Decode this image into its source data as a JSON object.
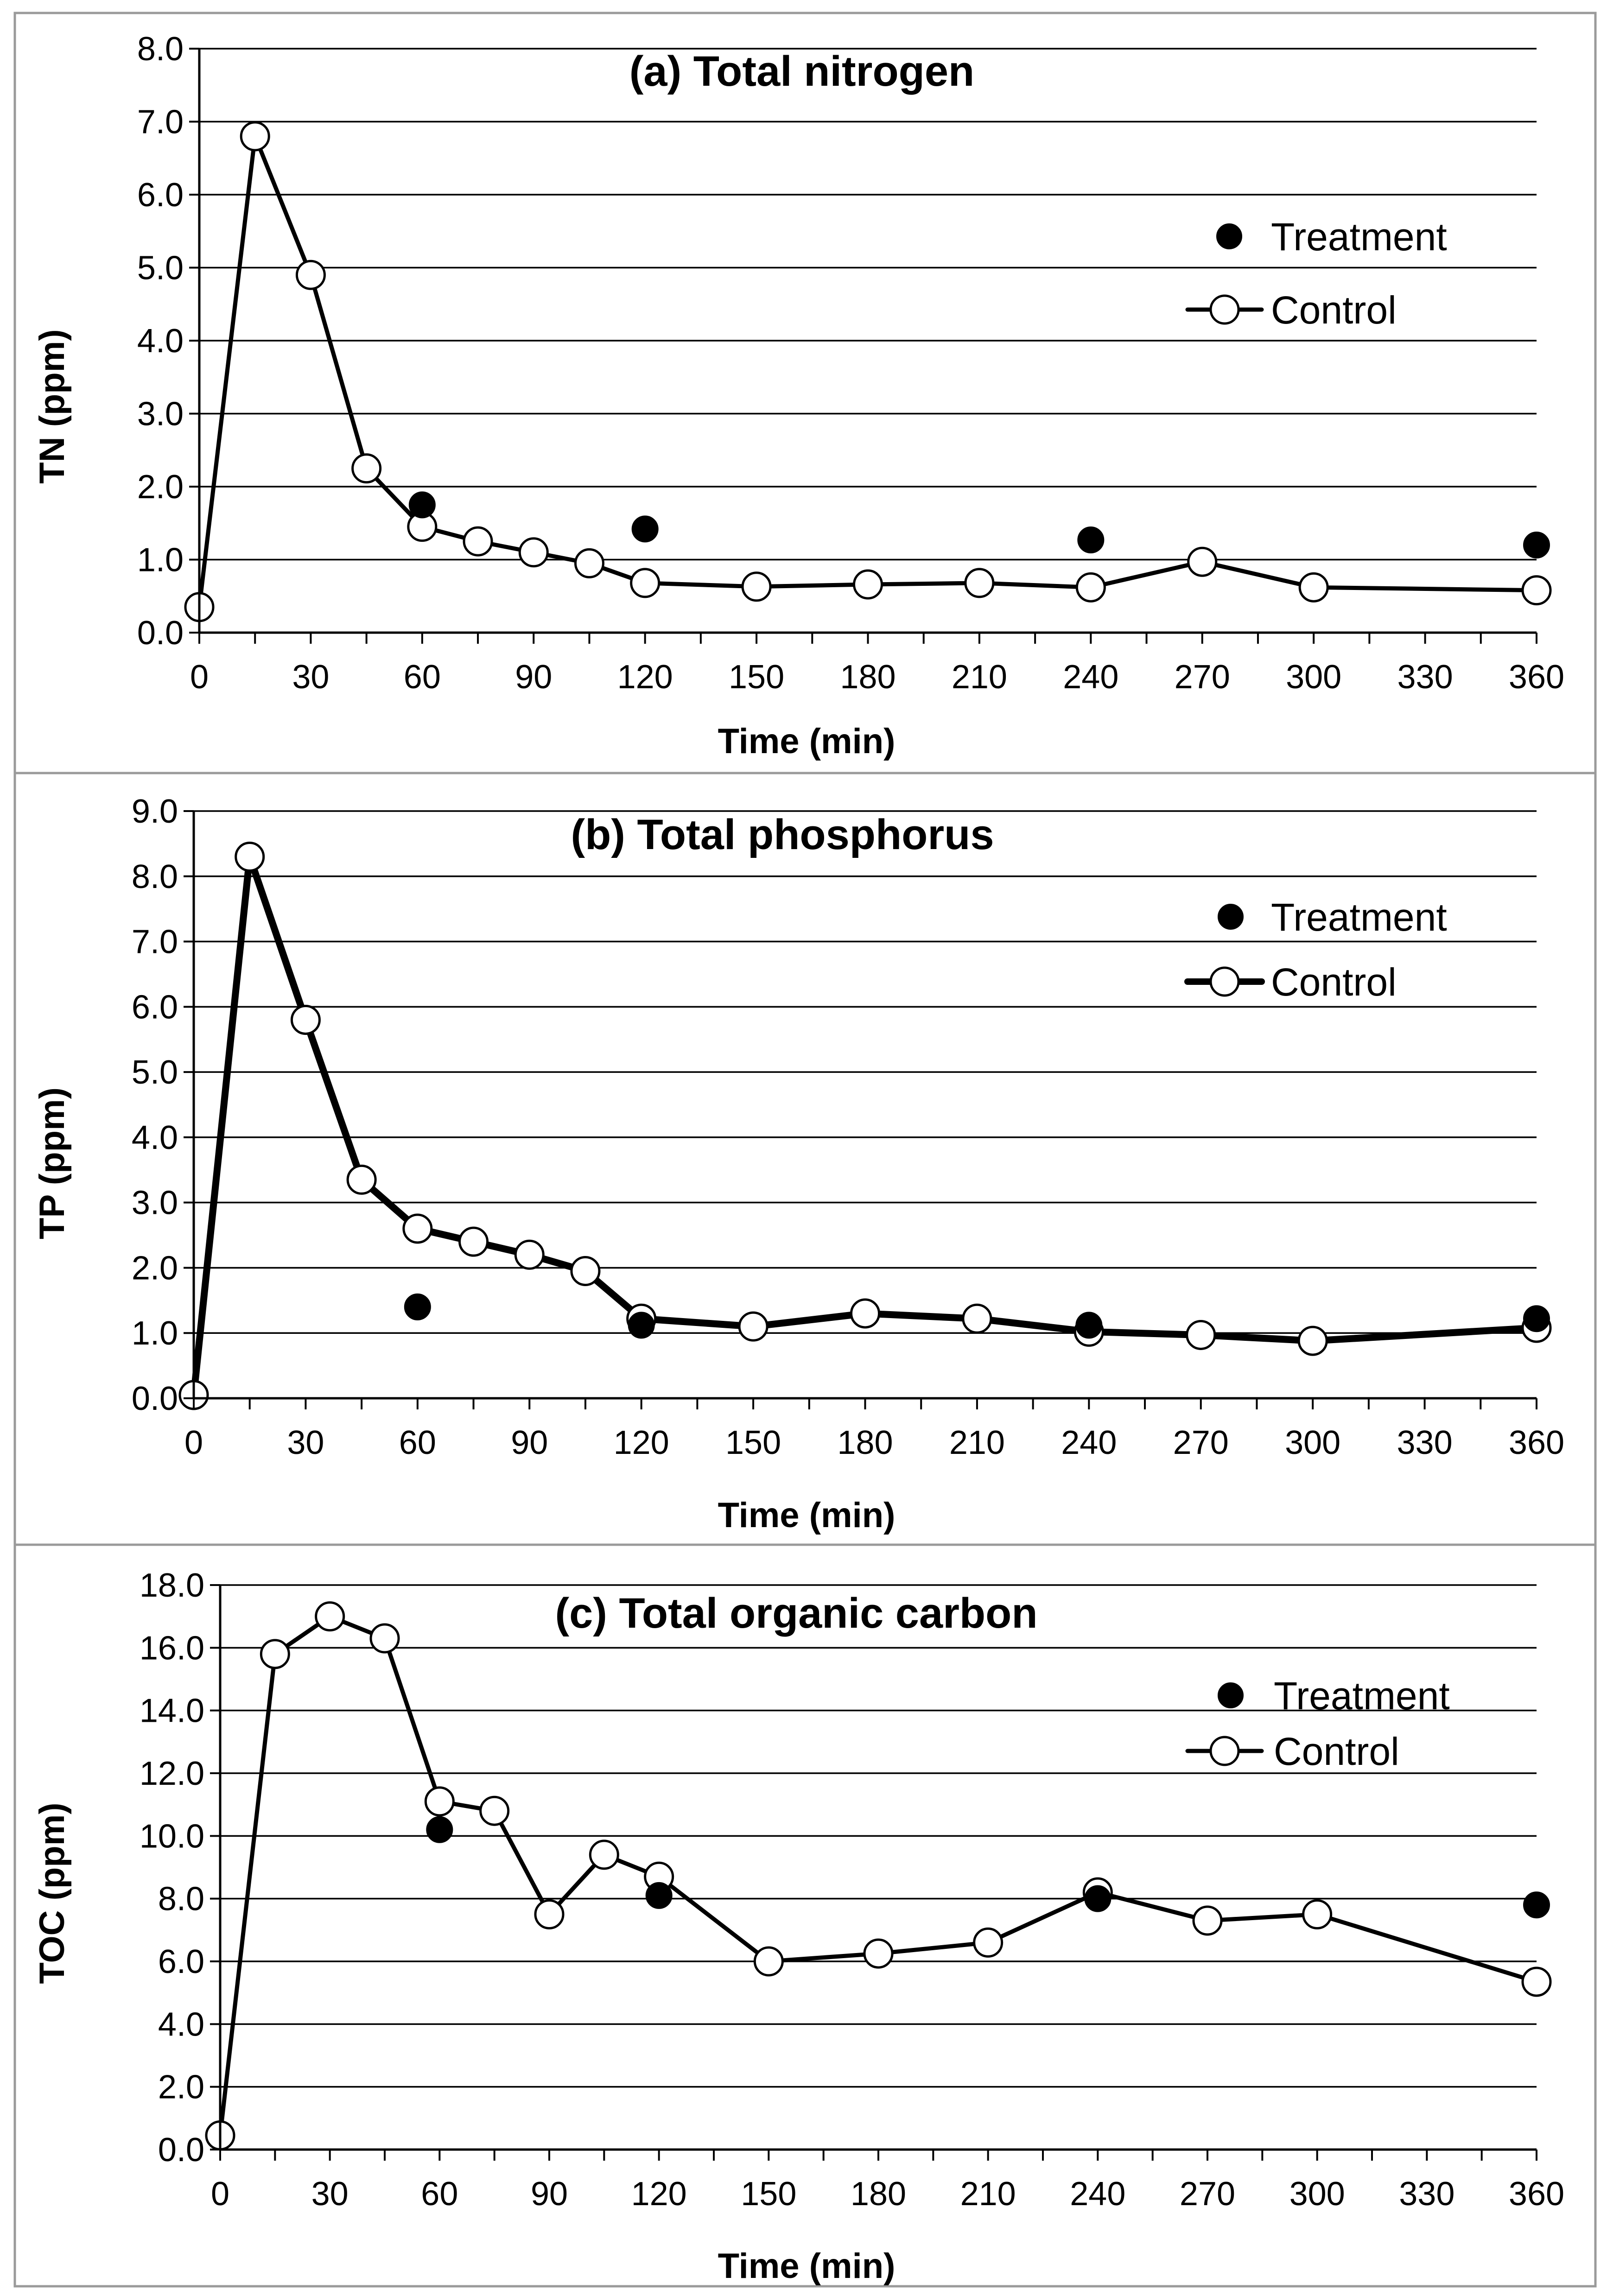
{
  "chart_data": [
    {
      "type": "line",
      "title": "(a)  Total nitrogen",
      "xlabel": "Time (min)",
      "ylabel": "TN (ppm)",
      "xlim": [
        0,
        360
      ],
      "ylim": [
        0,
        8
      ],
      "xticks": [
        0,
        30,
        60,
        90,
        120,
        150,
        180,
        210,
        240,
        270,
        300,
        330,
        360
      ],
      "yticks": [
        "0.0",
        "1.0",
        "2.0",
        "3.0",
        "4.0",
        "5.0",
        "6.0",
        "7.0",
        "8.0"
      ],
      "grid": true,
      "legend_position": "top-right",
      "series": [
        {
          "name": "Treatment",
          "style": "marker-filled",
          "x": [
            60,
            120,
            240,
            360
          ],
          "y": [
            1.75,
            1.42,
            1.27,
            1.2
          ]
        },
        {
          "name": "Control",
          "style": "line-open-marker",
          "x": [
            0,
            15,
            30,
            45,
            60,
            75,
            90,
            105,
            120,
            150,
            180,
            210,
            240,
            270,
            300,
            360
          ],
          "y": [
            0.35,
            6.8,
            4.9,
            2.25,
            1.45,
            1.25,
            1.1,
            0.95,
            0.68,
            0.63,
            0.66,
            0.68,
            0.62,
            0.97,
            0.62,
            0.58
          ]
        }
      ]
    },
    {
      "type": "line",
      "title": "(b) Total phosphorus",
      "xlabel": "Time (min)",
      "ylabel": "TP (ppm)",
      "xlim": [
        0,
        360
      ],
      "ylim": [
        0,
        9
      ],
      "xticks": [
        0,
        30,
        60,
        90,
        120,
        150,
        180,
        210,
        240,
        270,
        300,
        330,
        360
      ],
      "yticks": [
        "0.0",
        "1.0",
        "2.0",
        "3.0",
        "4.0",
        "5.0",
        "6.0",
        "7.0",
        "8.0",
        "9.0"
      ],
      "grid": true,
      "legend_position": "top-right",
      "series": [
        {
          "name": "Treatment",
          "style": "marker-filled",
          "x": [
            60,
            120,
            240,
            360
          ],
          "y": [
            1.4,
            1.12,
            1.12,
            1.22
          ]
        },
        {
          "name": "Control",
          "style": "line-open-marker",
          "x": [
            0,
            15,
            30,
            45,
            60,
            75,
            90,
            105,
            120,
            150,
            180,
            210,
            240,
            270,
            300,
            360
          ],
          "y": [
            0.05,
            8.3,
            5.8,
            3.35,
            2.6,
            2.4,
            2.2,
            1.95,
            1.22,
            1.1,
            1.3,
            1.22,
            1.02,
            0.97,
            0.88,
            1.08
          ]
        }
      ]
    },
    {
      "type": "line",
      "title": "(c) Total organic carbon",
      "xlabel": "Time (min)",
      "ylabel": "TOC (ppm)",
      "xlim": [
        0,
        360
      ],
      "ylim": [
        0,
        18
      ],
      "xticks": [
        0,
        30,
        60,
        90,
        120,
        150,
        180,
        210,
        240,
        270,
        300,
        330,
        360
      ],
      "yticks": [
        "0.0",
        "2.0",
        "4.0",
        "6.0",
        "8.0",
        "10.0",
        "12.0",
        "14.0",
        "16.0",
        "18.0"
      ],
      "grid": true,
      "legend_position": "top-right",
      "series": [
        {
          "name": "Treatment",
          "style": "marker-filled",
          "x": [
            60,
            120,
            240,
            360
          ],
          "y": [
            10.2,
            8.1,
            8.0,
            7.8
          ]
        },
        {
          "name": "Control",
          "style": "line-open-marker",
          "x": [
            0,
            15,
            30,
            45,
            60,
            75,
            90,
            105,
            120,
            150,
            180,
            210,
            240,
            270,
            300,
            360
          ],
          "y": [
            0.45,
            15.8,
            17.0,
            16.3,
            11.1,
            10.8,
            7.5,
            9.4,
            8.7,
            6.0,
            6.25,
            6.6,
            8.2,
            7.3,
            7.5,
            5.35
          ]
        }
      ]
    }
  ]
}
